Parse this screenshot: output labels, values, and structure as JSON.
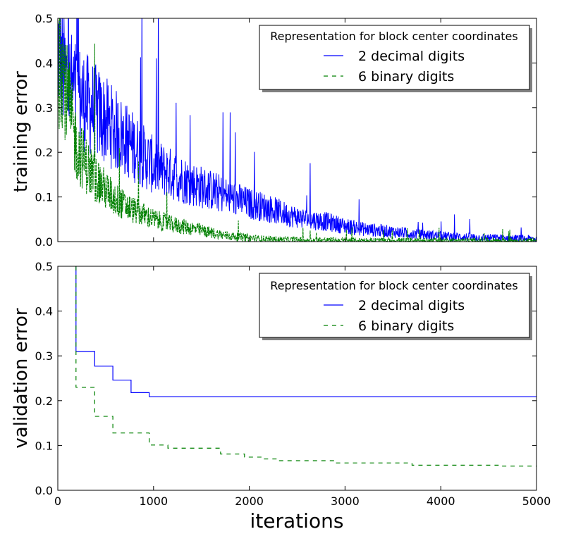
{
  "chart_data": [
    {
      "type": "line",
      "ylabel": "training error",
      "xlabel": "",
      "xlim": [
        0,
        5000
      ],
      "ylim": [
        0,
        0.5
      ],
      "yticks": [
        "0.0",
        "0.1",
        "0.2",
        "0.3",
        "0.4",
        "0.5"
      ],
      "legend": {
        "title": "Representation for block center coordinates",
        "placement": "top-right"
      },
      "series": [
        {
          "name": "2 decimal digits",
          "color": "#0000ff",
          "style": "solid",
          "noisy": true,
          "x": [
            0,
            50,
            100,
            200,
            300,
            400,
            500,
            600,
            700,
            800,
            900,
            1000,
            1200,
            1400,
            1600,
            1800,
            2000,
            2200,
            2400,
            2600,
            2800,
            3000,
            3200,
            3400,
            3600,
            3800,
            4000,
            4200,
            4400,
            4600,
            4800,
            5000
          ],
          "values": [
            0.44,
            0.38,
            0.36,
            0.33,
            0.31,
            0.29,
            0.27,
            0.25,
            0.23,
            0.21,
            0.19,
            0.17,
            0.15,
            0.13,
            0.115,
            0.1,
            0.085,
            0.075,
            0.06,
            0.05,
            0.045,
            0.035,
            0.028,
            0.024,
            0.02,
            0.016,
            0.013,
            0.011,
            0.009,
            0.008,
            0.007,
            0.006
          ]
        },
        {
          "name": "6 binary digits",
          "color": "#008000",
          "style": "dashed",
          "noisy": true,
          "x": [
            0,
            30,
            60,
            100,
            150,
            200,
            300,
            400,
            500,
            600,
            700,
            800,
            900,
            1000,
            1200,
            1400,
            1600,
            1800,
            2000,
            2200,
            2400,
            2600,
            2800,
            3000,
            3500,
            4000,
            4500,
            5000
          ],
          "values": [
            0.36,
            0.42,
            0.38,
            0.32,
            0.26,
            0.21,
            0.17,
            0.14,
            0.115,
            0.095,
            0.08,
            0.07,
            0.06,
            0.05,
            0.038,
            0.03,
            0.02,
            0.012,
            0.008,
            0.005,
            0.004,
            0.003,
            0.003,
            0.002,
            0.002,
            0.002,
            0.002,
            0.002
          ]
        }
      ]
    },
    {
      "type": "line",
      "ylabel": "validation error",
      "xlabel": "iterations",
      "xlim": [
        0,
        5000
      ],
      "ylim": [
        0,
        0.5
      ],
      "xticks": [
        "0",
        "1000",
        "2000",
        "3000",
        "4000",
        "5000"
      ],
      "yticks": [
        "0.0",
        "0.1",
        "0.2",
        "0.3",
        "0.4",
        "0.5"
      ],
      "legend": {
        "title": "Representation for block center coordinates",
        "placement": "top-right"
      },
      "series": [
        {
          "name": "2 decimal digits",
          "color": "#0000ff",
          "style": "solid",
          "step": true,
          "x": [
            190,
            190,
            385,
            575,
            765,
            955,
            5000
          ],
          "values": [
            0.5,
            0.31,
            0.277,
            0.246,
            0.218,
            0.209,
            0.209
          ]
        },
        {
          "name": "6 binary digits",
          "color": "#008000",
          "style": "dashed",
          "step": true,
          "x": [
            190,
            190,
            385,
            575,
            955,
            1150,
            1700,
            1950,
            2150,
            2300,
            2900,
            3700,
            4600,
            5000
          ],
          "values": [
            0.5,
            0.23,
            0.165,
            0.128,
            0.101,
            0.094,
            0.081,
            0.074,
            0.07,
            0.066,
            0.061,
            0.056,
            0.054,
            0.054
          ]
        }
      ]
    }
  ]
}
